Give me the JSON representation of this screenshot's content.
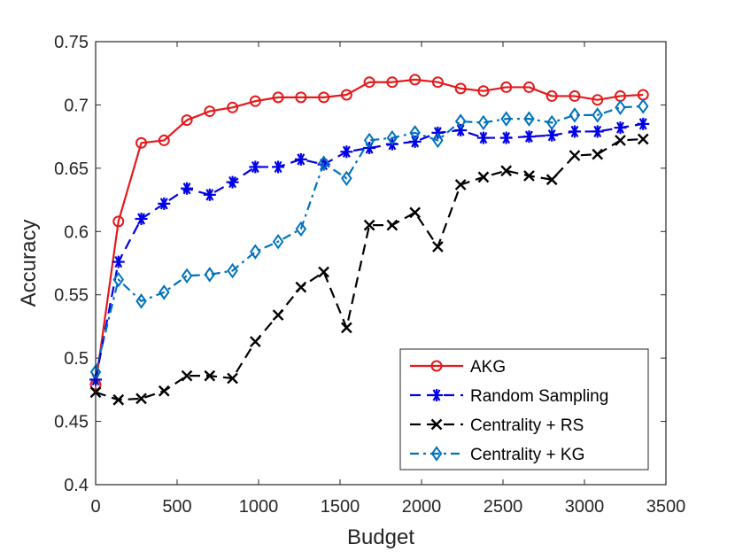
{
  "chart_data": {
    "type": "line",
    "title": "",
    "xlabel": "Budget",
    "ylabel": "Accuracy",
    "xlim": [
      0,
      3500
    ],
    "ylim": [
      0.4,
      0.75
    ],
    "xticks": [
      0,
      500,
      1000,
      1500,
      2000,
      2500,
      3000,
      3500
    ],
    "xtick_labels": [
      "0",
      "500",
      "1000",
      "1500",
      "2000",
      "2500",
      "3000",
      "3500"
    ],
    "yticks": [
      0.4,
      0.45,
      0.5,
      0.55,
      0.6,
      0.65,
      0.7,
      0.75
    ],
    "ytick_labels": [
      "0.4",
      "0.45",
      "0.5",
      "0.55",
      "0.6",
      "0.65",
      "0.7",
      "0.75"
    ],
    "grid": false,
    "legend_position": "bottom-right",
    "x": [
      0,
      140,
      280,
      420,
      560,
      700,
      840,
      980,
      1120,
      1260,
      1400,
      1540,
      1680,
      1820,
      1960,
      2100,
      2240,
      2380,
      2520,
      2660,
      2800,
      2940,
      3080,
      3220,
      3360
    ],
    "series": [
      {
        "name": "AKG",
        "color": "#e41a1c",
        "marker": "circle",
        "dash": "solid",
        "values": [
          0.479,
          0.608,
          0.67,
          0.672,
          0.688,
          0.695,
          0.698,
          0.703,
          0.706,
          0.706,
          0.706,
          0.708,
          0.718,
          0.718,
          0.72,
          0.718,
          0.713,
          0.711,
          0.714,
          0.714,
          0.707,
          0.707,
          0.704,
          0.707,
          0.708
        ]
      },
      {
        "name": "Random Sampling",
        "color": "#0000e6",
        "marker": "asterisk",
        "dash": "dashed",
        "values": [
          0.483,
          0.576,
          0.61,
          0.622,
          0.634,
          0.629,
          0.639,
          0.651,
          0.651,
          0.657,
          0.653,
          0.663,
          0.666,
          0.669,
          0.671,
          0.678,
          0.68,
          0.674,
          0.674,
          0.675,
          0.676,
          0.679,
          0.679,
          0.682,
          0.685
        ]
      },
      {
        "name": "Centrality + RS",
        "color": "#000000",
        "marker": "x",
        "dash": "dashed",
        "values": [
          0.473,
          0.467,
          0.468,
          0.474,
          0.486,
          0.486,
          0.484,
          0.513,
          0.534,
          0.556,
          0.568,
          0.524,
          0.605,
          0.605,
          0.615,
          0.588,
          0.637,
          0.643,
          0.648,
          0.644,
          0.641,
          0.66,
          0.661,
          0.672,
          0.673
        ]
      },
      {
        "name": "Centrality + KG",
        "color": "#0072bd",
        "marker": "diamond",
        "dash": "dashdot",
        "values": [
          0.489,
          0.562,
          0.545,
          0.552,
          0.565,
          0.566,
          0.569,
          0.584,
          0.592,
          0.602,
          0.654,
          0.642,
          0.672,
          0.674,
          0.678,
          0.672,
          0.687,
          0.686,
          0.689,
          0.689,
          0.686,
          0.692,
          0.692,
          0.698,
          0.699
        ]
      }
    ]
  }
}
